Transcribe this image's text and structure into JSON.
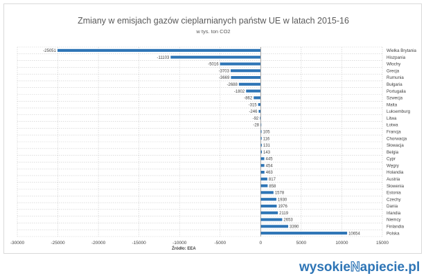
{
  "chart_data": {
    "type": "bar",
    "orientation": "horizontal",
    "title": "Zmiany w emisjach gazów cieplarnianych państw UE w latach 2015-16",
    "subtitle": "w tys. ton CO2",
    "source": "Źródło: EEA",
    "categories": [
      "Wielka Brytania",
      "Hiszpania",
      "Włochy",
      "Grecja",
      "Rumunia",
      "Bułgaria",
      "Portugalia",
      "Szwecja",
      "Malta",
      "Luksemburg",
      "Litwa",
      "Łotwa",
      "Francja",
      "Chorwacja",
      "Słowacja",
      "Belgia",
      "Cypr",
      "Węgry",
      "Holandia",
      "Austria",
      "Słowenia",
      "Estonia",
      "Czechy",
      "Dania",
      "Irlandia",
      "Niemcy",
      "Finlandia",
      "Polska"
    ],
    "values": [
      -25051,
      -11103,
      -5016,
      -3703,
      -3669,
      -2688,
      -1802,
      -862,
      -315,
      -246,
      -92,
      -28,
      105,
      116,
      131,
      143,
      445,
      454,
      463,
      817,
      858,
      1578,
      1930,
      1976,
      2119,
      2653,
      3390,
      10654
    ],
    "xlim": [
      -30000,
      15000
    ],
    "xticks": [
      -30000,
      -25000,
      -20000,
      -15000,
      -10000,
      -5000,
      0,
      5000,
      10000,
      15000
    ],
    "grid": true,
    "colors": {
      "bar": "#2e75b6",
      "grid": "#c9c9c9",
      "text": "#404040",
      "title": "#595959"
    }
  },
  "logo": {
    "text_before": "wysokie",
    "text_after": "apiecie.pl",
    "mark": "N",
    "color": "#2e75b6"
  }
}
